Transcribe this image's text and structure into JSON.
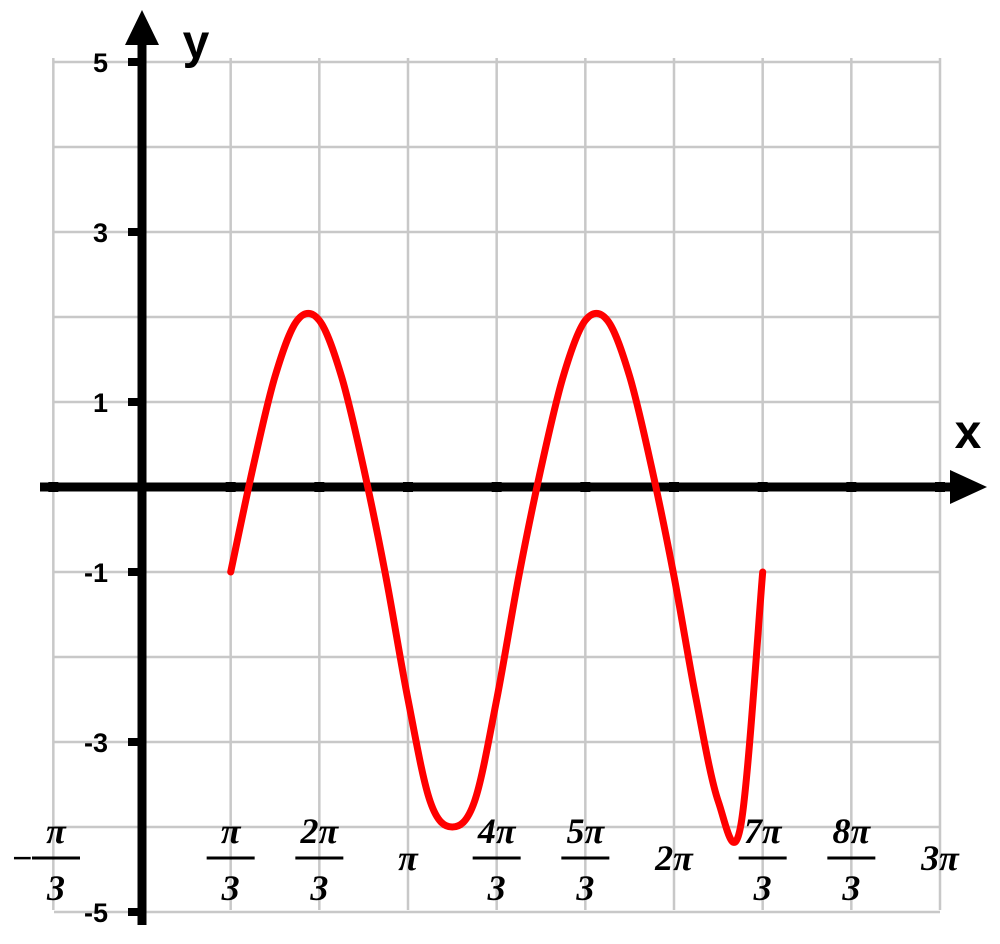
{
  "chart_data": {
    "type": "line",
    "title": "",
    "xlabel": "x",
    "ylabel": "y",
    "xlim_pi": [
      -0.3333,
      3
    ],
    "ylim": [
      -5,
      5
    ],
    "grid": true,
    "y_ticks": [
      {
        "value": 5,
        "label": "5"
      },
      {
        "value": 3,
        "label": "3"
      },
      {
        "value": 1,
        "label": "1"
      },
      {
        "value": -1,
        "label": "-1"
      },
      {
        "value": -3,
        "label": "-3"
      },
      {
        "value": -5,
        "label": "-5"
      }
    ],
    "x_ticks": [
      {
        "value_pi": -0.3333,
        "sign": "−",
        "num": "π",
        "den": "3"
      },
      {
        "value_pi": 0.3333,
        "num": "π",
        "den": "3"
      },
      {
        "value_pi": 0.6667,
        "num": "2π",
        "den": "3"
      },
      {
        "value_pi": 1,
        "label": "π"
      },
      {
        "value_pi": 1.3333,
        "num": "4π",
        "den": "3"
      },
      {
        "value_pi": 1.6667,
        "num": "5π",
        "den": "3"
      },
      {
        "value_pi": 2,
        "label": "2π"
      },
      {
        "value_pi": 2.3333,
        "num": "7π",
        "den": "3"
      },
      {
        "value_pi": 2.6667,
        "num": "8π",
        "den": "3"
      },
      {
        "value_pi": 3,
        "label": "3π"
      }
    ],
    "series": [
      {
        "color": "#ff0000",
        "x_pi": [
          0.3333,
          0.4167,
          0.5,
          0.5833,
          0.6667,
          0.75,
          0.8333,
          0.9167,
          1,
          1.0833,
          1.1667,
          1.25,
          1.3333,
          1.4167,
          1.5,
          1.5833,
          1.6667,
          1.75,
          1.8333,
          1.9167,
          2,
          2.0833,
          2.1667,
          2.25,
          2.3333
        ],
        "values": [
          -1,
          0.22,
          1.3,
          1.96,
          1.96,
          1.3,
          0.22,
          -1.05,
          -2.5,
          -3.7,
          -4,
          -3.7,
          -2.5,
          -1.05,
          0.22,
          1.3,
          1.96,
          1.96,
          1.3,
          0.22,
          -1.05,
          -2.5,
          -3.7,
          -4,
          -1
        ]
      }
    ]
  }
}
